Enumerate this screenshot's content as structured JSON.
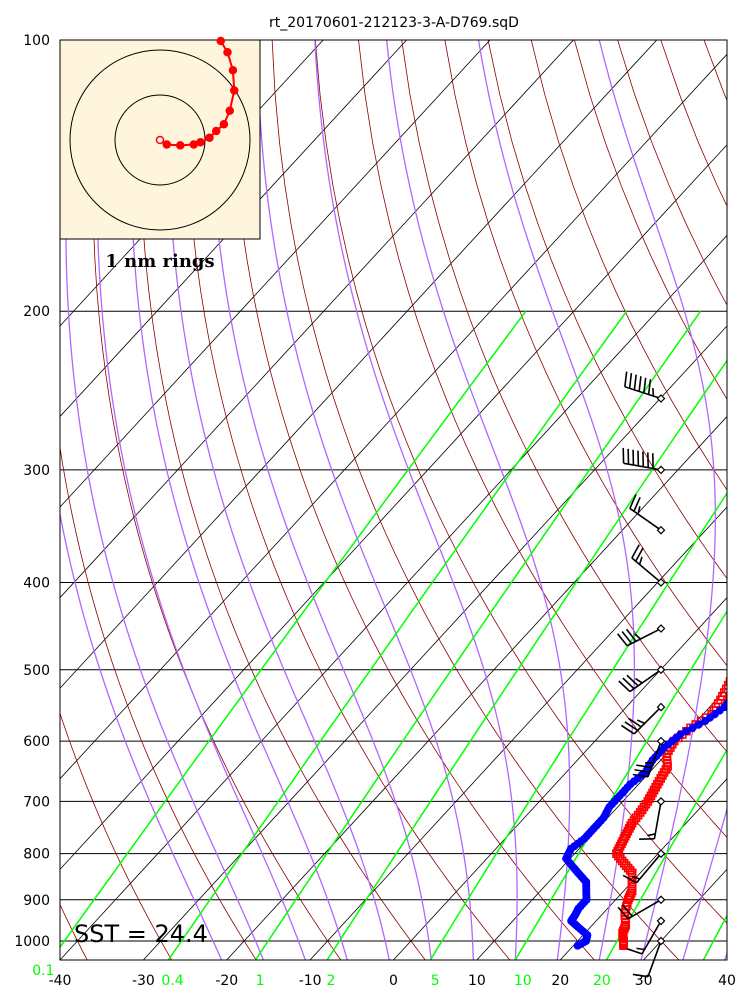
{
  "chart_data": {
    "type": "scatter",
    "title": "rt_20170601-212123-3-A-D769.sqD",
    "skewt": true,
    "temperature_axis": {
      "min": -40,
      "max": 40,
      "ticks": [
        -40,
        -30,
        -20,
        -10,
        0,
        10,
        20,
        30,
        40
      ]
    },
    "pressure_axis": {
      "log_scale": true,
      "min": 100,
      "max": 1050,
      "ticks": [
        100,
        200,
        300,
        400,
        500,
        600,
        700,
        800,
        900,
        1000
      ]
    },
    "mixing_ratio_labels": [
      {
        "value": "0.1",
        "temp": -42
      },
      {
        "value": "0.4",
        "temp": -26.5
      },
      {
        "value": "1",
        "temp": -16
      },
      {
        "value": "2",
        "temp": -7.5
      },
      {
        "value": "5",
        "temp": 5
      },
      {
        "value": "10",
        "temp": 15.5
      },
      {
        "value": "20",
        "temp": 25
      }
    ],
    "series": [
      {
        "name": "",
        "color": "#ff0000",
        "marker": "square",
        "points": [
          [
            1012,
            26.0
          ],
          [
            1000,
            25.5
          ],
          [
            980,
            24.5
          ],
          [
            960,
            24
          ],
          [
            930,
            22.5
          ],
          [
            900,
            21.5
          ],
          [
            880,
            21
          ],
          [
            860,
            20
          ],
          [
            840,
            19
          ],
          [
            820,
            17
          ],
          [
            800,
            15
          ],
          [
            780,
            14.5
          ],
          [
            760,
            14
          ],
          [
            740,
            13.5
          ],
          [
            720,
            13.3
          ],
          [
            700,
            13
          ],
          [
            680,
            12.5
          ],
          [
            660,
            12
          ],
          [
            640,
            11.5
          ],
          [
            620,
            10
          ],
          [
            600,
            9.5
          ],
          [
            580,
            10
          ],
          [
            560,
            11
          ],
          [
            540,
            10.5
          ],
          [
            520,
            9.8
          ],
          [
            500,
            9
          ],
          [
            480,
            8
          ],
          [
            460,
            7
          ],
          [
            440,
            6
          ],
          [
            420,
            5.5
          ],
          [
            400,
            4.5
          ],
          [
            380,
            3.5
          ],
          [
            360,
            2.5
          ],
          [
            340,
            1.5
          ],
          [
            320,
            0
          ],
          [
            300,
            -1.5
          ],
          [
            280,
            -3.5
          ],
          [
            260,
            -5.5
          ],
          [
            240,
            -7.5
          ],
          [
            228,
            -8.5
          ]
        ]
      },
      {
        "name": "",
        "color": "#0000ff",
        "marker": "circle",
        "points": [
          [
            1012,
            20.5
          ],
          [
            1000,
            21.0
          ],
          [
            985,
            20.5
          ],
          [
            965,
            18.5
          ],
          [
            950,
            17
          ],
          [
            935,
            16.8
          ],
          [
            920,
            16.5
          ],
          [
            900,
            16.5
          ],
          [
            880,
            15.5
          ],
          [
            860,
            14.5
          ],
          [
            845,
            13
          ],
          [
            830,
            11.5
          ],
          [
            810,
            9.5
          ],
          [
            790,
            9
          ],
          [
            770,
            9.5
          ],
          [
            750,
            9.5
          ],
          [
            730,
            9.5
          ],
          [
            710,
            9
          ],
          [
            690,
            9
          ],
          [
            670,
            9
          ],
          [
            650,
            9.5
          ],
          [
            630,
            9
          ],
          [
            610,
            9
          ],
          [
            590,
            9.5
          ],
          [
            570,
            11
          ],
          [
            550,
            11.8
          ],
          [
            530,
            11.5
          ],
          [
            510,
            10.8
          ],
          [
            490,
            10
          ],
          [
            470,
            8.5
          ],
          [
            450,
            7
          ],
          [
            430,
            5.5
          ],
          [
            410,
            4.5
          ],
          [
            395,
            4.5
          ],
          [
            380,
            3
          ],
          [
            360,
            0.5
          ],
          [
            340,
            -2.5
          ],
          [
            320,
            -6
          ],
          [
            300,
            -10
          ],
          [
            285,
            -13
          ],
          [
            270,
            -16.5
          ],
          [
            255,
            -19.5
          ],
          [
            245,
            -21.5
          ],
          [
            235,
            -22.5
          ],
          [
            227,
            -22.5
          ],
          [
            225,
            -23.5
          ]
        ]
      }
    ],
    "wind_barbs": [
      {
        "pressure": 250,
        "speed_kt": 65,
        "direction_deg": 288
      },
      {
        "pressure": 300,
        "speed_kt": 70,
        "direction_deg": 280
      },
      {
        "pressure": 350,
        "speed_kt": 25,
        "direction_deg": 305
      },
      {
        "pressure": 400,
        "speed_kt": 25,
        "direction_deg": 310
      },
      {
        "pressure": 450,
        "speed_kt": 35,
        "direction_deg": 243
      },
      {
        "pressure": 500,
        "speed_kt": 35,
        "direction_deg": 235
      },
      {
        "pressure": 550,
        "speed_kt": 35,
        "direction_deg": 225
      },
      {
        "pressure": 600,
        "speed_kt": 35,
        "direction_deg": 200
      },
      {
        "pressure": 700,
        "speed_kt": 15,
        "direction_deg": 190
      },
      {
        "pressure": 800,
        "speed_kt": 15,
        "direction_deg": 220
      },
      {
        "pressure": 900,
        "speed_kt": 20,
        "direction_deg": 240
      },
      {
        "pressure": 950,
        "speed_kt": 15,
        "direction_deg": 210
      },
      {
        "pressure": 1000,
        "speed_kt": 10,
        "direction_deg": 200
      }
    ],
    "colors": {
      "isotherm": "#000000",
      "dry_adiabat": "#8b0000",
      "moist_adiabat": "#b266ff",
      "mixing_ratio": "#00ff00",
      "inset_background": "#fff5dc"
    },
    "sst_label": "SST = 24.4",
    "inset": {
      "label": "1 nm rings",
      "ring_radii_nm": [
        1,
        2
      ],
      "track_nm": [
        [
          0,
          0
        ],
        [
          0.15,
          -0.1
        ],
        [
          0.45,
          -0.12
        ],
        [
          0.75,
          -0.1
        ],
        [
          0.9,
          -0.05
        ],
        [
          1.1,
          0.05
        ],
        [
          1.25,
          0.2
        ],
        [
          1.42,
          0.35
        ],
        [
          1.55,
          0.65
        ],
        [
          1.65,
          1.1
        ],
        [
          1.62,
          1.55
        ],
        [
          1.5,
          1.95
        ],
        [
          1.35,
          2.2
        ]
      ]
    }
  }
}
